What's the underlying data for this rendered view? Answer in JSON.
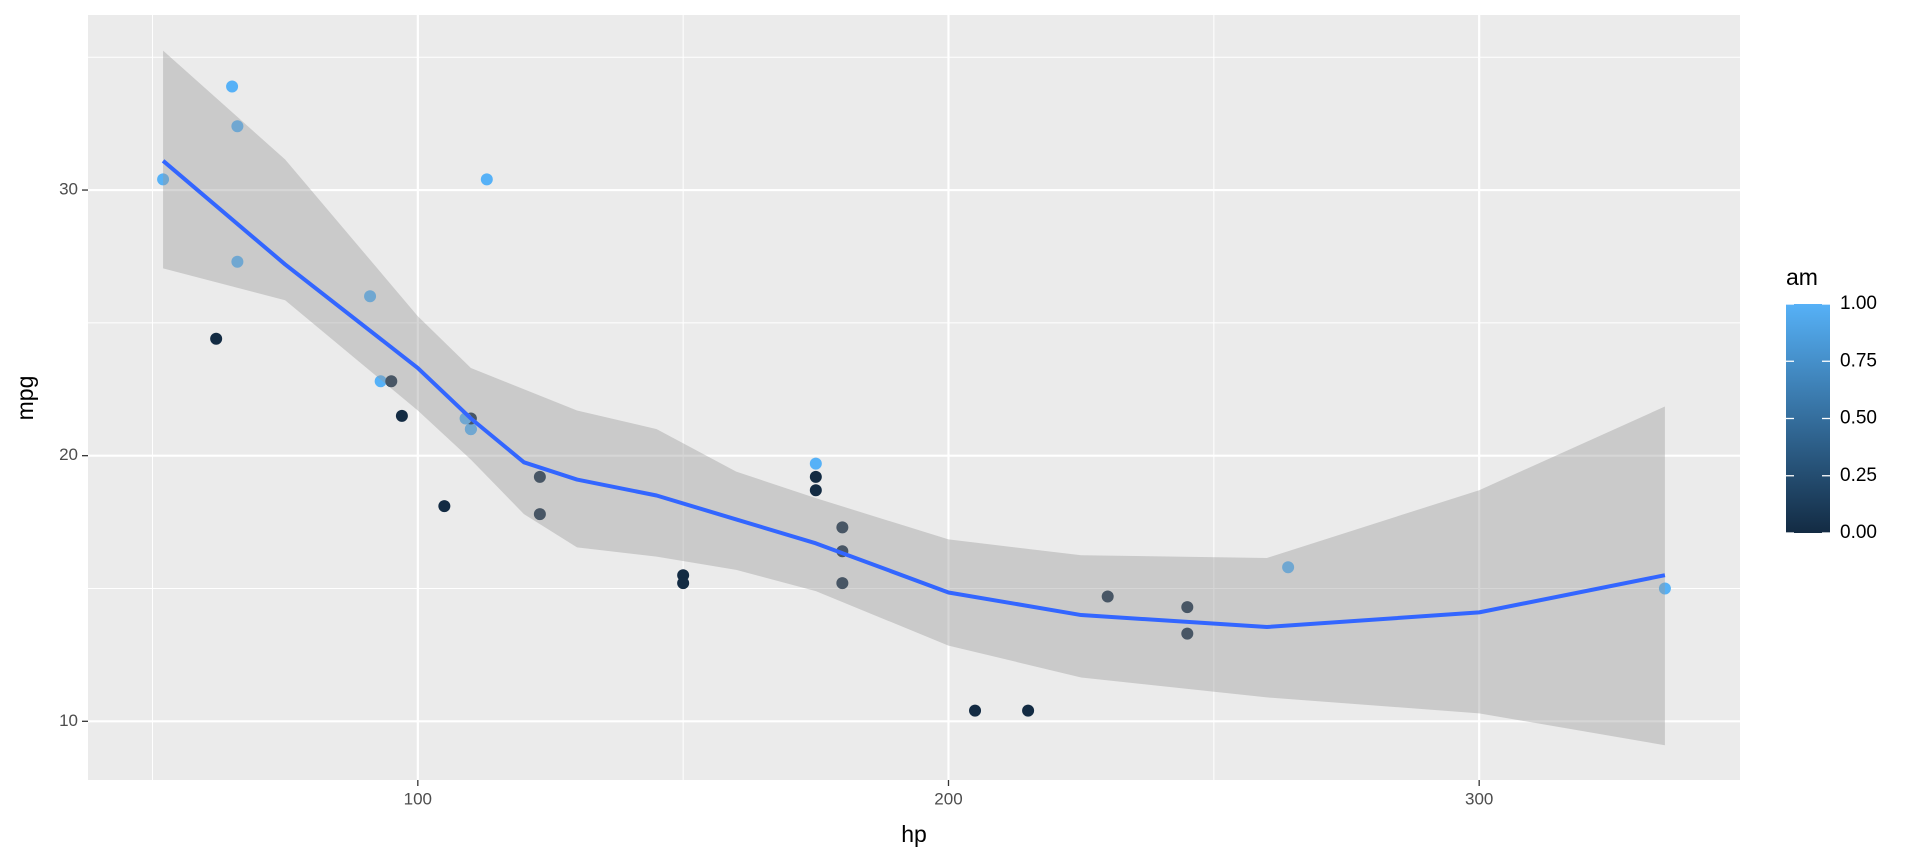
{
  "chart_data": {
    "type": "scatter",
    "xlabel": "hp",
    "ylabel": "mpg",
    "x": [
      110,
      110,
      93,
      110,
      175,
      105,
      245,
      62,
      95,
      123,
      123,
      180,
      180,
      180,
      205,
      215,
      230,
      66,
      52,
      65,
      97,
      150,
      150,
      245,
      175,
      66,
      91,
      113,
      264,
      175,
      335,
      109
    ],
    "y": [
      21.0,
      21.0,
      22.8,
      21.4,
      18.7,
      18.1,
      14.3,
      24.4,
      22.8,
      19.2,
      17.8,
      16.4,
      17.3,
      15.2,
      10.4,
      10.4,
      14.7,
      32.4,
      30.4,
      33.9,
      21.5,
      15.5,
      15.2,
      13.3,
      19.2,
      27.3,
      26.0,
      30.4,
      15.8,
      19.7,
      15.0,
      21.4
    ],
    "color_values": [
      1,
      1,
      1,
      0,
      0,
      0,
      0,
      0,
      0,
      0,
      0,
      0,
      0,
      0,
      0,
      0,
      0,
      1,
      1,
      1,
      0,
      0,
      0,
      0,
      0,
      1,
      1,
      1,
      1,
      1,
      1,
      1
    ],
    "color_scale": {
      "title": "am",
      "low": "#132B43",
      "high": "#56B1F7",
      "limits": [
        0,
        1
      ],
      "ticks": [
        {
          "value": 0,
          "label": "0.00"
        },
        {
          "value": 0.25,
          "label": "0.25"
        },
        {
          "value": 0.5,
          "label": "0.50"
        },
        {
          "value": 0.75,
          "label": "0.75"
        },
        {
          "value": 1,
          "label": "1.00"
        }
      ]
    },
    "smooth": {
      "color": "#3366FF",
      "ribbon_color": "#999999",
      "x": [
        52,
        75,
        100,
        110,
        120,
        130,
        145,
        160,
        175,
        200,
        225,
        260,
        300,
        335
      ],
      "y": [
        31.1,
        27.2,
        23.3,
        21.4,
        19.75,
        19.1,
        18.5,
        17.6,
        16.7,
        14.85,
        14.0,
        13.55,
        14.1,
        15.5
      ],
      "ymin": [
        27.05,
        25.85,
        21.7,
        19.85,
        17.8,
        16.55,
        16.2,
        15.7,
        14.9,
        12.85,
        11.65,
        10.9,
        10.3,
        9.1
      ],
      "ymax": [
        35.25,
        31.15,
        25.25,
        23.3,
        22.5,
        21.7,
        21.0,
        19.4,
        18.4,
        16.85,
        16.25,
        16.15,
        18.7,
        21.85
      ]
    },
    "xlim": [
      37.85,
      349.15
    ],
    "ylim": [
      7.79,
      36.59
    ],
    "xticks": [
      100,
      200,
      300
    ],
    "yticks": [
      10,
      20,
      30
    ],
    "xminor": [
      50,
      150,
      250
    ],
    "yminor": [
      15,
      25,
      35
    ],
    "grid": true
  }
}
